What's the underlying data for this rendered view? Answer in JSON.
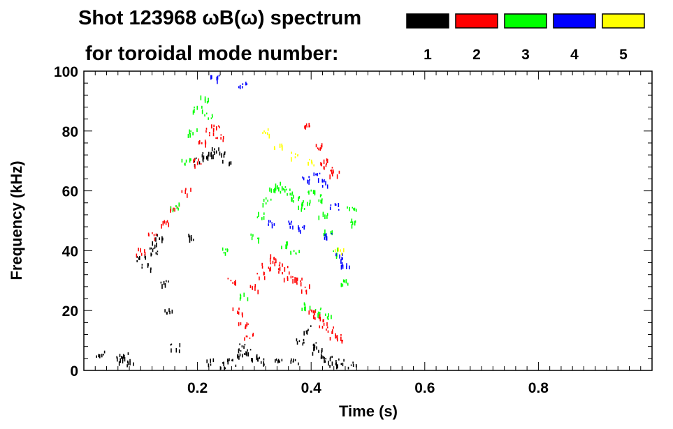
{
  "chart_data": {
    "type": "scatter",
    "title_line1": "Shot 123968 ωB(ω) spectrum",
    "title_line2": "for toroidal mode number:",
    "xlabel": "Time (s)",
    "ylabel": "Frequency (kHz)",
    "xlim": [
      0.0,
      1.0
    ],
    "ylim": [
      0,
      100
    ],
    "x_ticks": [
      "0.2",
      "0.4",
      "0.6",
      "0.8"
    ],
    "x_tick_values": [
      0.2,
      0.4,
      0.6,
      0.8
    ],
    "y_ticks": [
      "0",
      "20",
      "40",
      "60",
      "80",
      "100"
    ],
    "y_tick_values": [
      0,
      20,
      40,
      60,
      80,
      100
    ],
    "grid": false,
    "legend_placement": "top-right",
    "legend": [
      {
        "label": "1",
        "color": "#000000"
      },
      {
        "label": "2",
        "color": "#ff0000"
      },
      {
        "label": "3",
        "color": "#00ff00"
      },
      {
        "label": "4",
        "color": "#0000ff"
      },
      {
        "label": "5",
        "color": "#ffff00"
      }
    ],
    "series": [
      {
        "mode": "1",
        "color": "#000000",
        "points": [
          [
            0.03,
            6
          ],
          [
            0.06,
            4
          ],
          [
            0.07,
            5
          ],
          [
            0.08,
            3
          ],
          [
            0.1,
            38
          ],
          [
            0.11,
            35
          ],
          [
            0.12,
            42
          ],
          [
            0.125,
            40
          ],
          [
            0.13,
            45
          ],
          [
            0.14,
            30
          ],
          [
            0.15,
            20
          ],
          [
            0.16,
            8
          ],
          [
            0.19,
            45
          ],
          [
            0.2,
            70
          ],
          [
            0.21,
            72
          ],
          [
            0.22,
            73
          ],
          [
            0.23,
            74
          ],
          [
            0.24,
            72
          ],
          [
            0.25,
            70
          ],
          [
            0.22,
            3
          ],
          [
            0.24,
            2
          ],
          [
            0.26,
            3
          ],
          [
            0.27,
            6
          ],
          [
            0.28,
            8
          ],
          [
            0.29,
            7
          ],
          [
            0.3,
            5
          ],
          [
            0.31,
            3
          ],
          [
            0.34,
            4
          ],
          [
            0.37,
            3
          ],
          [
            0.38,
            10
          ],
          [
            0.39,
            14
          ],
          [
            0.4,
            9
          ],
          [
            0.41,
            7
          ],
          [
            0.42,
            5
          ],
          [
            0.43,
            4
          ],
          [
            0.44,
            3
          ],
          [
            0.45,
            3
          ],
          [
            0.47,
            2
          ]
        ]
      },
      {
        "mode": "2",
        "color": "#ff0000",
        "points": [
          [
            0.1,
            40
          ],
          [
            0.12,
            45
          ],
          [
            0.14,
            50
          ],
          [
            0.16,
            55
          ],
          [
            0.18,
            60
          ],
          [
            0.2,
            70
          ],
          [
            0.21,
            76
          ],
          [
            0.22,
            80
          ],
          [
            0.23,
            82
          ],
          [
            0.24,
            78
          ],
          [
            0.26,
            30
          ],
          [
            0.27,
            20
          ],
          [
            0.28,
            15
          ],
          [
            0.29,
            12
          ],
          [
            0.3,
            28
          ],
          [
            0.31,
            32
          ],
          [
            0.32,
            35
          ],
          [
            0.33,
            38
          ],
          [
            0.34,
            36
          ],
          [
            0.35,
            34
          ],
          [
            0.36,
            32
          ],
          [
            0.37,
            31
          ],
          [
            0.38,
            30
          ],
          [
            0.39,
            28
          ],
          [
            0.4,
            20
          ],
          [
            0.41,
            18
          ],
          [
            0.42,
            16
          ],
          [
            0.43,
            14
          ],
          [
            0.44,
            12
          ],
          [
            0.45,
            11
          ],
          [
            0.39,
            82
          ],
          [
            0.41,
            75
          ],
          [
            0.42,
            70
          ],
          [
            0.43,
            68
          ],
          [
            0.44,
            66
          ]
        ]
      },
      {
        "mode": "3",
        "color": "#00ff00",
        "points": [
          [
            0.16,
            55
          ],
          [
            0.18,
            70
          ],
          [
            0.19,
            80
          ],
          [
            0.2,
            88
          ],
          [
            0.21,
            91
          ],
          [
            0.22,
            85
          ],
          [
            0.25,
            40
          ],
          [
            0.28,
            25
          ],
          [
            0.3,
            45
          ],
          [
            0.31,
            52
          ],
          [
            0.32,
            57
          ],
          [
            0.33,
            60
          ],
          [
            0.34,
            62
          ],
          [
            0.35,
            61
          ],
          [
            0.36,
            60
          ],
          [
            0.37,
            58
          ],
          [
            0.38,
            55
          ],
          [
            0.39,
            57
          ],
          [
            0.4,
            60
          ],
          [
            0.41,
            58
          ],
          [
            0.42,
            52
          ],
          [
            0.43,
            46
          ],
          [
            0.44,
            40
          ],
          [
            0.35,
            42
          ],
          [
            0.37,
            40
          ],
          [
            0.39,
            22
          ],
          [
            0.41,
            20
          ],
          [
            0.43,
            18
          ],
          [
            0.46,
            30
          ],
          [
            0.47,
            50
          ],
          [
            0.47,
            55
          ]
        ]
      },
      {
        "mode": "4",
        "color": "#0000ff",
        "points": [
          [
            0.23,
            98
          ],
          [
            0.28,
            96
          ],
          [
            0.33,
            50
          ],
          [
            0.36,
            49
          ],
          [
            0.38,
            48
          ],
          [
            0.39,
            64
          ],
          [
            0.41,
            65
          ],
          [
            0.42,
            63
          ],
          [
            0.44,
            55
          ],
          [
            0.43,
            45
          ],
          [
            0.45,
            38
          ],
          [
            0.46,
            36
          ]
        ]
      },
      {
        "mode": "5",
        "color": "#ffff00",
        "points": [
          [
            0.32,
            80
          ],
          [
            0.34,
            75
          ],
          [
            0.37,
            72
          ],
          [
            0.4,
            70
          ],
          [
            0.45,
            40
          ]
        ]
      }
    ]
  }
}
